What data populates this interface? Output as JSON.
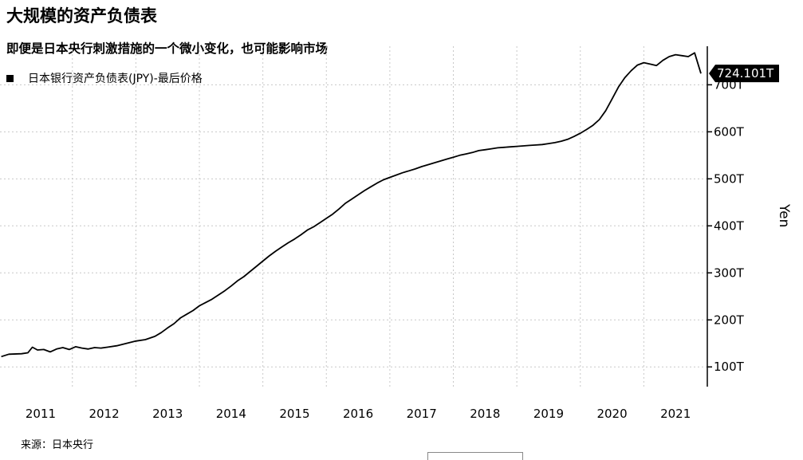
{
  "title": "大规模的资产负债表",
  "subtitle": "即便是日本央行刺激措施的一个微小变化，也可能影响市场",
  "source": "来源：日本央行",
  "chart_data": {
    "type": "line",
    "ylabel": "Yen",
    "xlabel": "",
    "ylim": [
      58,
      782
    ],
    "xlim": [
      2010.36,
      2021.5
    ],
    "yticks": [
      100,
      200,
      300,
      400,
      500,
      600,
      700
    ],
    "ytick_labels": [
      "100T",
      "200T",
      "300T",
      "400T",
      "500T",
      "600T",
      "700T"
    ],
    "xticks": [
      2011,
      2012,
      2013,
      2014,
      2015,
      2016,
      2017,
      2018,
      2019,
      2020,
      2021
    ],
    "xtick_labels": [
      "2011",
      "2012",
      "2013",
      "2014",
      "2015",
      "2016",
      "2017",
      "2018",
      "2019",
      "2020",
      "2021"
    ],
    "grid": true,
    "legend_position": "top-left",
    "last_value_label": "724.101T",
    "series": [
      {
        "name": "日本银行资产负债表(JPY)-最后价格",
        "color": "#000000",
        "x": [
          2010.38,
          2010.5,
          2010.7,
          2010.8,
          2010.87,
          2010.95,
          2011.05,
          2011.15,
          2011.25,
          2011.35,
          2011.45,
          2011.55,
          2011.65,
          2011.75,
          2011.85,
          2011.95,
          2012.05,
          2012.2,
          2012.35,
          2012.5,
          2012.65,
          2012.8,
          2012.9,
          2013.0,
          2013.1,
          2013.2,
          2013.3,
          2013.4,
          2013.5,
          2013.6,
          2013.7,
          2013.8,
          2013.9,
          2014.0,
          2014.1,
          2014.2,
          2014.3,
          2014.4,
          2014.5,
          2014.6,
          2014.7,
          2014.8,
          2014.9,
          2015.0,
          2015.1,
          2015.2,
          2015.3,
          2015.4,
          2015.5,
          2015.6,
          2015.7,
          2015.8,
          2015.9,
          2016.0,
          2016.1,
          2016.2,
          2016.3,
          2016.4,
          2016.5,
          2016.6,
          2016.7,
          2016.8,
          2016.9,
          2017.0,
          2017.1,
          2017.2,
          2017.3,
          2017.4,
          2017.5,
          2017.6,
          2017.7,
          2017.8,
          2017.9,
          2018.0,
          2018.1,
          2018.2,
          2018.3,
          2018.4,
          2018.5,
          2018.6,
          2018.7,
          2018.8,
          2018.9,
          2019.0,
          2019.1,
          2019.2,
          2019.3,
          2019.4,
          2019.5,
          2019.6,
          2019.7,
          2019.8,
          2019.9,
          2020.0,
          2020.1,
          2020.2,
          2020.3,
          2020.4,
          2020.5,
          2020.6,
          2020.7,
          2020.8,
          2020.9,
          2021.0,
          2021.1,
          2021.2,
          2021.3,
          2021.4
        ],
        "values": [
          122,
          127,
          128,
          130,
          142,
          136,
          137,
          132,
          138,
          141,
          137,
          143,
          140,
          138,
          141,
          140,
          142,
          145,
          150,
          155,
          158,
          165,
          173,
          183,
          192,
          204,
          212,
          220,
          230,
          237,
          244,
          253,
          262,
          272,
          283,
          292,
          303,
          314,
          325,
          336,
          346,
          355,
          364,
          372,
          381,
          391,
          398,
          407,
          416,
          425,
          436,
          448,
          457,
          466,
          475,
          483,
          491,
          498,
          503,
          508,
          513,
          517,
          521,
          526,
          530,
          534,
          538,
          542,
          546,
          550,
          553,
          556,
          560,
          562,
          564,
          566,
          567,
          568,
          569,
          570,
          571,
          572,
          573,
          575,
          577,
          580,
          584,
          590,
          597,
          605,
          614,
          626,
          645,
          670,
          695,
          715,
          730,
          742,
          747,
          744,
          741,
          752,
          760,
          764,
          762,
          760,
          768,
          724
        ]
      }
    ]
  }
}
